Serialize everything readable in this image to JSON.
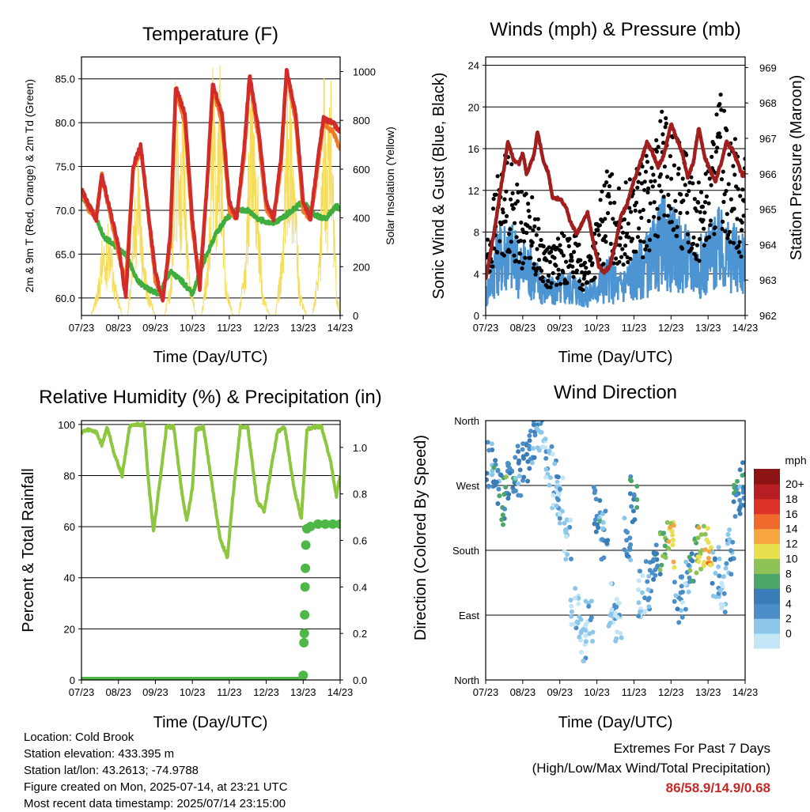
{
  "chart_data": [
    {
      "id": "temperature",
      "type": "line",
      "title": "Temperature (F)",
      "xlabel": "Time (Day/UTC)",
      "ylabel": "2m & 9m T (Red, Orange) & 2m Td (Green)",
      "y2label": "Solar Insolation (Yellow)",
      "x_ticks": [
        "07/23",
        "08/23",
        "09/23",
        "10/23",
        "11/23",
        "12/23",
        "13/23",
        "14/23"
      ],
      "ylim": [
        58,
        87.5
      ],
      "y_ticks": [
        "60.0",
        "65.0",
        "70.0",
        "75.0",
        "80.0",
        "85.0"
      ],
      "y2lim": [
        0,
        1060
      ],
      "y2_ticks": [
        "0",
        "200",
        "400",
        "600",
        "800",
        "1000"
      ],
      "grid": "horizontal",
      "colors": {
        "t2m": "#d32a2a",
        "t9m": "#f07a28",
        "td2m": "#3fae3f",
        "solar": "#f5dc5a"
      },
      "series": [
        {
          "key": "solar",
          "axis": "y2",
          "kind": "thin",
          "x": [
            0,
            0.25,
            0.45,
            0.55,
            0.65,
            0.75,
            0.9,
            1.1,
            1.25,
            1.35,
            1.45,
            1.55,
            1.65,
            1.8,
            2.0,
            2.25,
            2.45,
            2.55,
            2.65,
            2.75,
            2.9,
            3.1,
            3.25,
            3.45,
            3.55,
            3.65,
            3.75,
            3.9,
            4.1,
            4.25,
            4.45,
            4.55,
            4.65,
            4.75,
            4.9,
            5.1,
            5.25,
            5.45,
            5.55,
            5.65,
            5.75,
            5.9,
            6.1,
            6.25,
            6.45,
            6.55,
            6.65,
            6.75,
            6.9,
            7.0
          ],
          "values": [
            0,
            0,
            120,
            300,
            250,
            420,
            150,
            0,
            0,
            230,
            480,
            700,
            300,
            100,
            0,
            0,
            200,
            950,
            520,
            880,
            200,
            0,
            0,
            300,
            1000,
            700,
            980,
            150,
            0,
            0,
            250,
            800,
            950,
            650,
            100,
            0,
            0,
            300,
            860,
            950,
            700,
            100,
            0,
            0,
            250,
            950,
            700,
            900,
            100,
            0
          ]
        },
        {
          "key": "td2m",
          "axis": "y",
          "kind": "thick",
          "x": [
            0,
            0.3,
            0.6,
            0.9,
            1.2,
            1.5,
            1.8,
            2.1,
            2.4,
            2.7,
            3.0,
            3.3,
            3.6,
            3.9,
            4.2,
            4.5,
            4.8,
            5.1,
            5.4,
            5.7,
            6.0,
            6.3,
            6.6,
            6.9,
            7.0
          ],
          "values": [
            71.5,
            70,
            67,
            66,
            65,
            62,
            61,
            60.5,
            63,
            62,
            60.5,
            64,
            67,
            69,
            70,
            70,
            69,
            68.5,
            69,
            70,
            71,
            69.5,
            69,
            70.5,
            70
          ]
        },
        {
          "key": "t9m",
          "axis": "y",
          "kind": "thick",
          "x": [
            0,
            0.2,
            0.4,
            0.55,
            0.8,
            1.0,
            1.2,
            1.4,
            1.6,
            1.8,
            2.0,
            2.2,
            2.4,
            2.55,
            2.8,
            3.0,
            3.2,
            3.4,
            3.55,
            3.8,
            4.0,
            4.2,
            4.4,
            4.55,
            4.8,
            5.0,
            5.2,
            5.4,
            5.55,
            5.8,
            6.0,
            6.2,
            6.4,
            6.55,
            6.8,
            7.0
          ],
          "values": [
            72,
            70,
            69.5,
            74,
            69,
            65,
            62,
            74.5,
            77,
            70,
            62,
            60,
            66,
            83.5,
            80,
            68,
            62,
            73,
            84,
            80,
            70,
            69,
            76,
            85,
            78,
            70,
            69,
            75,
            86,
            80,
            70,
            69,
            75,
            80,
            79,
            77
          ]
        },
        {
          "key": "t2m",
          "axis": "y",
          "kind": "thick",
          "x": [
            0,
            0.2,
            0.4,
            0.55,
            0.8,
            1.0,
            1.2,
            1.4,
            1.6,
            1.8,
            2.0,
            2.2,
            2.4,
            2.55,
            2.8,
            3.0,
            3.2,
            3.4,
            3.55,
            3.8,
            4.0,
            4.2,
            4.4,
            4.55,
            4.8,
            5.0,
            5.2,
            5.4,
            5.55,
            5.8,
            6.0,
            6.2,
            6.4,
            6.55,
            6.8,
            7.0
          ],
          "values": [
            72.5,
            70.5,
            69,
            74,
            69.5,
            66,
            60,
            75,
            77.5,
            70,
            63,
            59.5,
            67,
            84,
            81,
            69,
            61,
            73,
            84.5,
            81,
            71,
            69,
            77,
            85.5,
            79,
            71,
            69,
            76,
            86,
            81,
            71,
            69,
            76,
            80.5,
            80,
            79
          ]
        }
      ]
    },
    {
      "id": "winds",
      "type": "scatter",
      "title": "Winds (mph) & Pressure (mb)",
      "xlabel": "Time (Day/UTC)",
      "ylabel": "Sonic Wind & Gust (Blue, Black)",
      "y2label": "Station Pressure (Maroon)",
      "x_ticks": [
        "07/23",
        "08/23",
        "09/23",
        "10/23",
        "11/23",
        "12/23",
        "13/23",
        "14/23"
      ],
      "ylim": [
        0,
        24.8
      ],
      "y_ticks": [
        "0",
        "4",
        "8",
        "12",
        "16",
        "20",
        "24"
      ],
      "y2lim": [
        962,
        969.3
      ],
      "y2_ticks": [
        "962",
        "963",
        "964",
        "965",
        "966",
        "967",
        "968",
        "969"
      ],
      "grid": "horizontal",
      "colors": {
        "wind": "#4d94d2",
        "gust": "#000000",
        "pressure": "#a11e1e"
      },
      "series": [
        {
          "key": "wind",
          "axis": "y",
          "kind": "band",
          "x": [
            0,
            0.3,
            0.6,
            0.9,
            1.2,
            1.5,
            1.8,
            2.1,
            2.4,
            2.7,
            3.0,
            3.3,
            3.6,
            3.9,
            4.2,
            4.5,
            4.8,
            5.1,
            5.4,
            5.7,
            6.0,
            6.3,
            6.6,
            6.9,
            7.0
          ],
          "values": [
            2,
            6,
            7,
            5,
            5,
            3,
            2.5,
            3,
            3,
            2,
            3,
            4,
            3,
            4,
            5,
            6,
            8,
            7,
            6,
            5,
            6,
            7,
            6,
            6,
            6
          ]
        },
        {
          "key": "gust",
          "axis": "y",
          "kind": "dots",
          "x": [
            0,
            0.3,
            0.6,
            0.9,
            1.2,
            1.5,
            1.8,
            2.1,
            2.4,
            2.7,
            3.0,
            3.3,
            3.6,
            3.9,
            4.2,
            4.5,
            4.8,
            5.1,
            5.4,
            5.7,
            6.0,
            6.3,
            6.6,
            6.9,
            7.0
          ],
          "values": [
            5,
            10,
            12,
            9,
            9,
            6,
            5,
            6,
            6,
            4,
            7,
            11,
            9,
            10,
            11,
            12,
            15,
            13,
            12,
            10,
            11,
            16,
            14,
            11,
            12
          ]
        },
        {
          "key": "pressure",
          "axis": "y2",
          "kind": "thick",
          "x": [
            0,
            0.1,
            0.25,
            0.35,
            0.5,
            0.6,
            0.75,
            0.9,
            1.0,
            1.1,
            1.3,
            1.4,
            1.55,
            1.7,
            1.8,
            2.0,
            2.15,
            2.3,
            2.45,
            2.6,
            2.75,
            2.9,
            3.05,
            3.2,
            3.35,
            3.5,
            3.65,
            3.8,
            4.0,
            4.2,
            4.35,
            4.5,
            4.65,
            4.8,
            5.0,
            5.15,
            5.3,
            5.45,
            5.6,
            5.75,
            5.9,
            6.05,
            6.2,
            6.35,
            6.5,
            6.65,
            6.8,
            6.95,
            7.0
          ],
          "values": [
            963.0,
            963.6,
            964.5,
            965.2,
            966.2,
            966.9,
            966.4,
            966.3,
            966.6,
            966.0,
            966.5,
            967.2,
            966.4,
            966.0,
            965.3,
            965.3,
            965.1,
            964.6,
            964.3,
            964.6,
            964.9,
            964.1,
            963.4,
            963.2,
            963.4,
            964.0,
            964.8,
            965.1,
            965.8,
            966.4,
            966.9,
            966.6,
            966.2,
            966.5,
            967.4,
            967.0,
            966.6,
            965.9,
            966.3,
            967.3,
            966.5,
            966.1,
            965.8,
            966.3,
            966.9,
            966.7,
            966.3,
            965.9,
            966.1
          ]
        }
      ]
    },
    {
      "id": "humidity",
      "type": "line",
      "title": "Relative Humidity (%) & Precipitation (in)",
      "xlabel": "Time (Day/UTC)",
      "ylabel": "Percent & Total Rainfall",
      "x_ticks": [
        "07/23",
        "08/23",
        "09/23",
        "10/23",
        "11/23",
        "12/23",
        "13/23",
        "14/23"
      ],
      "ylim": [
        0,
        101.5
      ],
      "y_ticks": [
        "0",
        "20",
        "40",
        "60",
        "80",
        "100"
      ],
      "y2lim": [
        0,
        1.115
      ],
      "y2_ticks": [
        "0.0",
        "0.2",
        "0.4",
        "0.6",
        "0.8",
        "1.0"
      ],
      "grid": "horizontal",
      "colors": {
        "rh": "#8dc63f",
        "precip": "#4db848"
      },
      "series": [
        {
          "key": "rh",
          "axis": "y",
          "kind": "thick",
          "x": [
            0,
            0.2,
            0.4,
            0.55,
            0.7,
            0.9,
            1.1,
            1.3,
            1.5,
            1.7,
            1.8,
            1.95,
            2.1,
            2.3,
            2.5,
            2.7,
            2.85,
            3.0,
            3.1,
            3.3,
            3.5,
            3.75,
            3.95,
            4.1,
            4.3,
            4.5,
            4.75,
            4.95,
            5.1,
            5.3,
            5.5,
            5.75,
            5.95,
            6.1,
            6.3,
            6.5,
            6.75,
            6.9,
            7.0
          ],
          "values": [
            97,
            98,
            97,
            92,
            99,
            88,
            80,
            99,
            100,
            100,
            80,
            58,
            75,
            99,
            99,
            75,
            62,
            75,
            98,
            99,
            80,
            55,
            48,
            72,
            99,
            99,
            70,
            66,
            80,
            97,
            99,
            75,
            63,
            98,
            99,
            99,
            85,
            72,
            80
          ]
        },
        {
          "key": "precip",
          "axis": "y2",
          "kind": "dots",
          "x": [
            0,
            0.5,
            1.0,
            1.5,
            2.0,
            2.5,
            3.0,
            3.5,
            4.0,
            4.5,
            5.0,
            5.5,
            5.9,
            6.0,
            6.02,
            6.03,
            6.04,
            6.05,
            6.06,
            6.07,
            6.1,
            6.2,
            6.4,
            6.6,
            6.8,
            7.0
          ],
          "values": [
            0,
            0,
            0,
            0,
            0,
            0,
            0,
            0,
            0,
            0,
            0,
            0,
            0,
            0.02,
            0.16,
            0.2,
            0.28,
            0.4,
            0.48,
            0.58,
            0.65,
            0.66,
            0.67,
            0.67,
            0.67,
            0.67
          ]
        }
      ]
    },
    {
      "id": "wind_direction",
      "type": "scatter",
      "title": "Wind Direction",
      "xlabel": "Time (Day/UTC)",
      "ylabel": "Direction (Colored By Speed)",
      "x_ticks": [
        "07/23",
        "08/23",
        "09/23",
        "10/23",
        "11/23",
        "12/23",
        "13/23",
        "14/23"
      ],
      "y_ticks": [
        "North",
        "East",
        "South",
        "West",
        "North"
      ],
      "ylim": [
        0,
        360
      ],
      "grid": "horizontal",
      "colorbar_title": "mph",
      "colorbar_labels": [
        "0",
        "2",
        "4",
        "6",
        "8",
        "10",
        "12",
        "14",
        "16",
        "18",
        "20+"
      ],
      "colorbar_colors": [
        "#c3e6f7",
        "#8cc7ea",
        "#4b8ec8",
        "#3a7cb8",
        "#4aa669",
        "#8fc256",
        "#e6df4e",
        "#f6a540",
        "#ef6a2c",
        "#dc3227",
        "#b61e23",
        "#8c1414"
      ],
      "points": [
        {
          "x": 0.1,
          "y": 300,
          "s": 4
        },
        {
          "x": 0.3,
          "y": 270,
          "s": 6
        },
        {
          "x": 0.5,
          "y": 250,
          "s": 8
        },
        {
          "x": 0.7,
          "y": 270,
          "s": 6
        },
        {
          "x": 0.9,
          "y": 290,
          "s": 5
        },
        {
          "x": 1.1,
          "y": 310,
          "s": 6
        },
        {
          "x": 1.3,
          "y": 330,
          "s": 5
        },
        {
          "x": 1.5,
          "y": 350,
          "s": 4
        },
        {
          "x": 1.7,
          "y": 300,
          "s": 3
        },
        {
          "x": 1.9,
          "y": 270,
          "s": 3
        },
        {
          "x": 2.0,
          "y": 250,
          "s": 4
        },
        {
          "x": 2.2,
          "y": 200,
          "s": 3
        },
        {
          "x": 2.4,
          "y": 100,
          "s": 2
        },
        {
          "x": 2.6,
          "y": 60,
          "s": 2
        },
        {
          "x": 2.8,
          "y": 80,
          "s": 3
        },
        {
          "x": 3.0,
          "y": 240,
          "s": 6
        },
        {
          "x": 3.2,
          "y": 200,
          "s": 5
        },
        {
          "x": 3.4,
          "y": 100,
          "s": 3
        },
        {
          "x": 3.6,
          "y": 80,
          "s": 2
        },
        {
          "x": 3.8,
          "y": 190,
          "s": 5
        },
        {
          "x": 4.0,
          "y": 250,
          "s": 7
        },
        {
          "x": 4.2,
          "y": 120,
          "s": 3
        },
        {
          "x": 4.4,
          "y": 130,
          "s": 4
        },
        {
          "x": 4.6,
          "y": 170,
          "s": 6
        },
        {
          "x": 4.8,
          "y": 180,
          "s": 10
        },
        {
          "x": 5.0,
          "y": 190,
          "s": 13
        },
        {
          "x": 5.2,
          "y": 110,
          "s": 4
        },
        {
          "x": 5.4,
          "y": 130,
          "s": 3
        },
        {
          "x": 5.6,
          "y": 170,
          "s": 9
        },
        {
          "x": 5.8,
          "y": 180,
          "s": 12
        },
        {
          "x": 6.0,
          "y": 185,
          "s": 14
        },
        {
          "x": 6.2,
          "y": 150,
          "s": 4
        },
        {
          "x": 6.4,
          "y": 120,
          "s": 3
        },
        {
          "x": 6.6,
          "y": 180,
          "s": 5
        },
        {
          "x": 6.8,
          "y": 260,
          "s": 7
        },
        {
          "x": 6.95,
          "y": 270,
          "s": 6
        }
      ]
    }
  ],
  "info": {
    "location": "Location: Cold Brook",
    "elevation": "Station elevation: 433.395 m",
    "latlon": "Station lat/lon: 43.2613; -74.9788",
    "created": "Figure created on Mon, 2025-07-14, at 23:21 UTC",
    "recent": "Most recent data timestamp: 2025/07/14 23:15:00"
  },
  "extremes": {
    "line1": "Extremes For Past 7 Days",
    "line2": "(High/Low/Max Wind/Total Precipitation)",
    "values": "86/58.9/14.9/0.68"
  }
}
